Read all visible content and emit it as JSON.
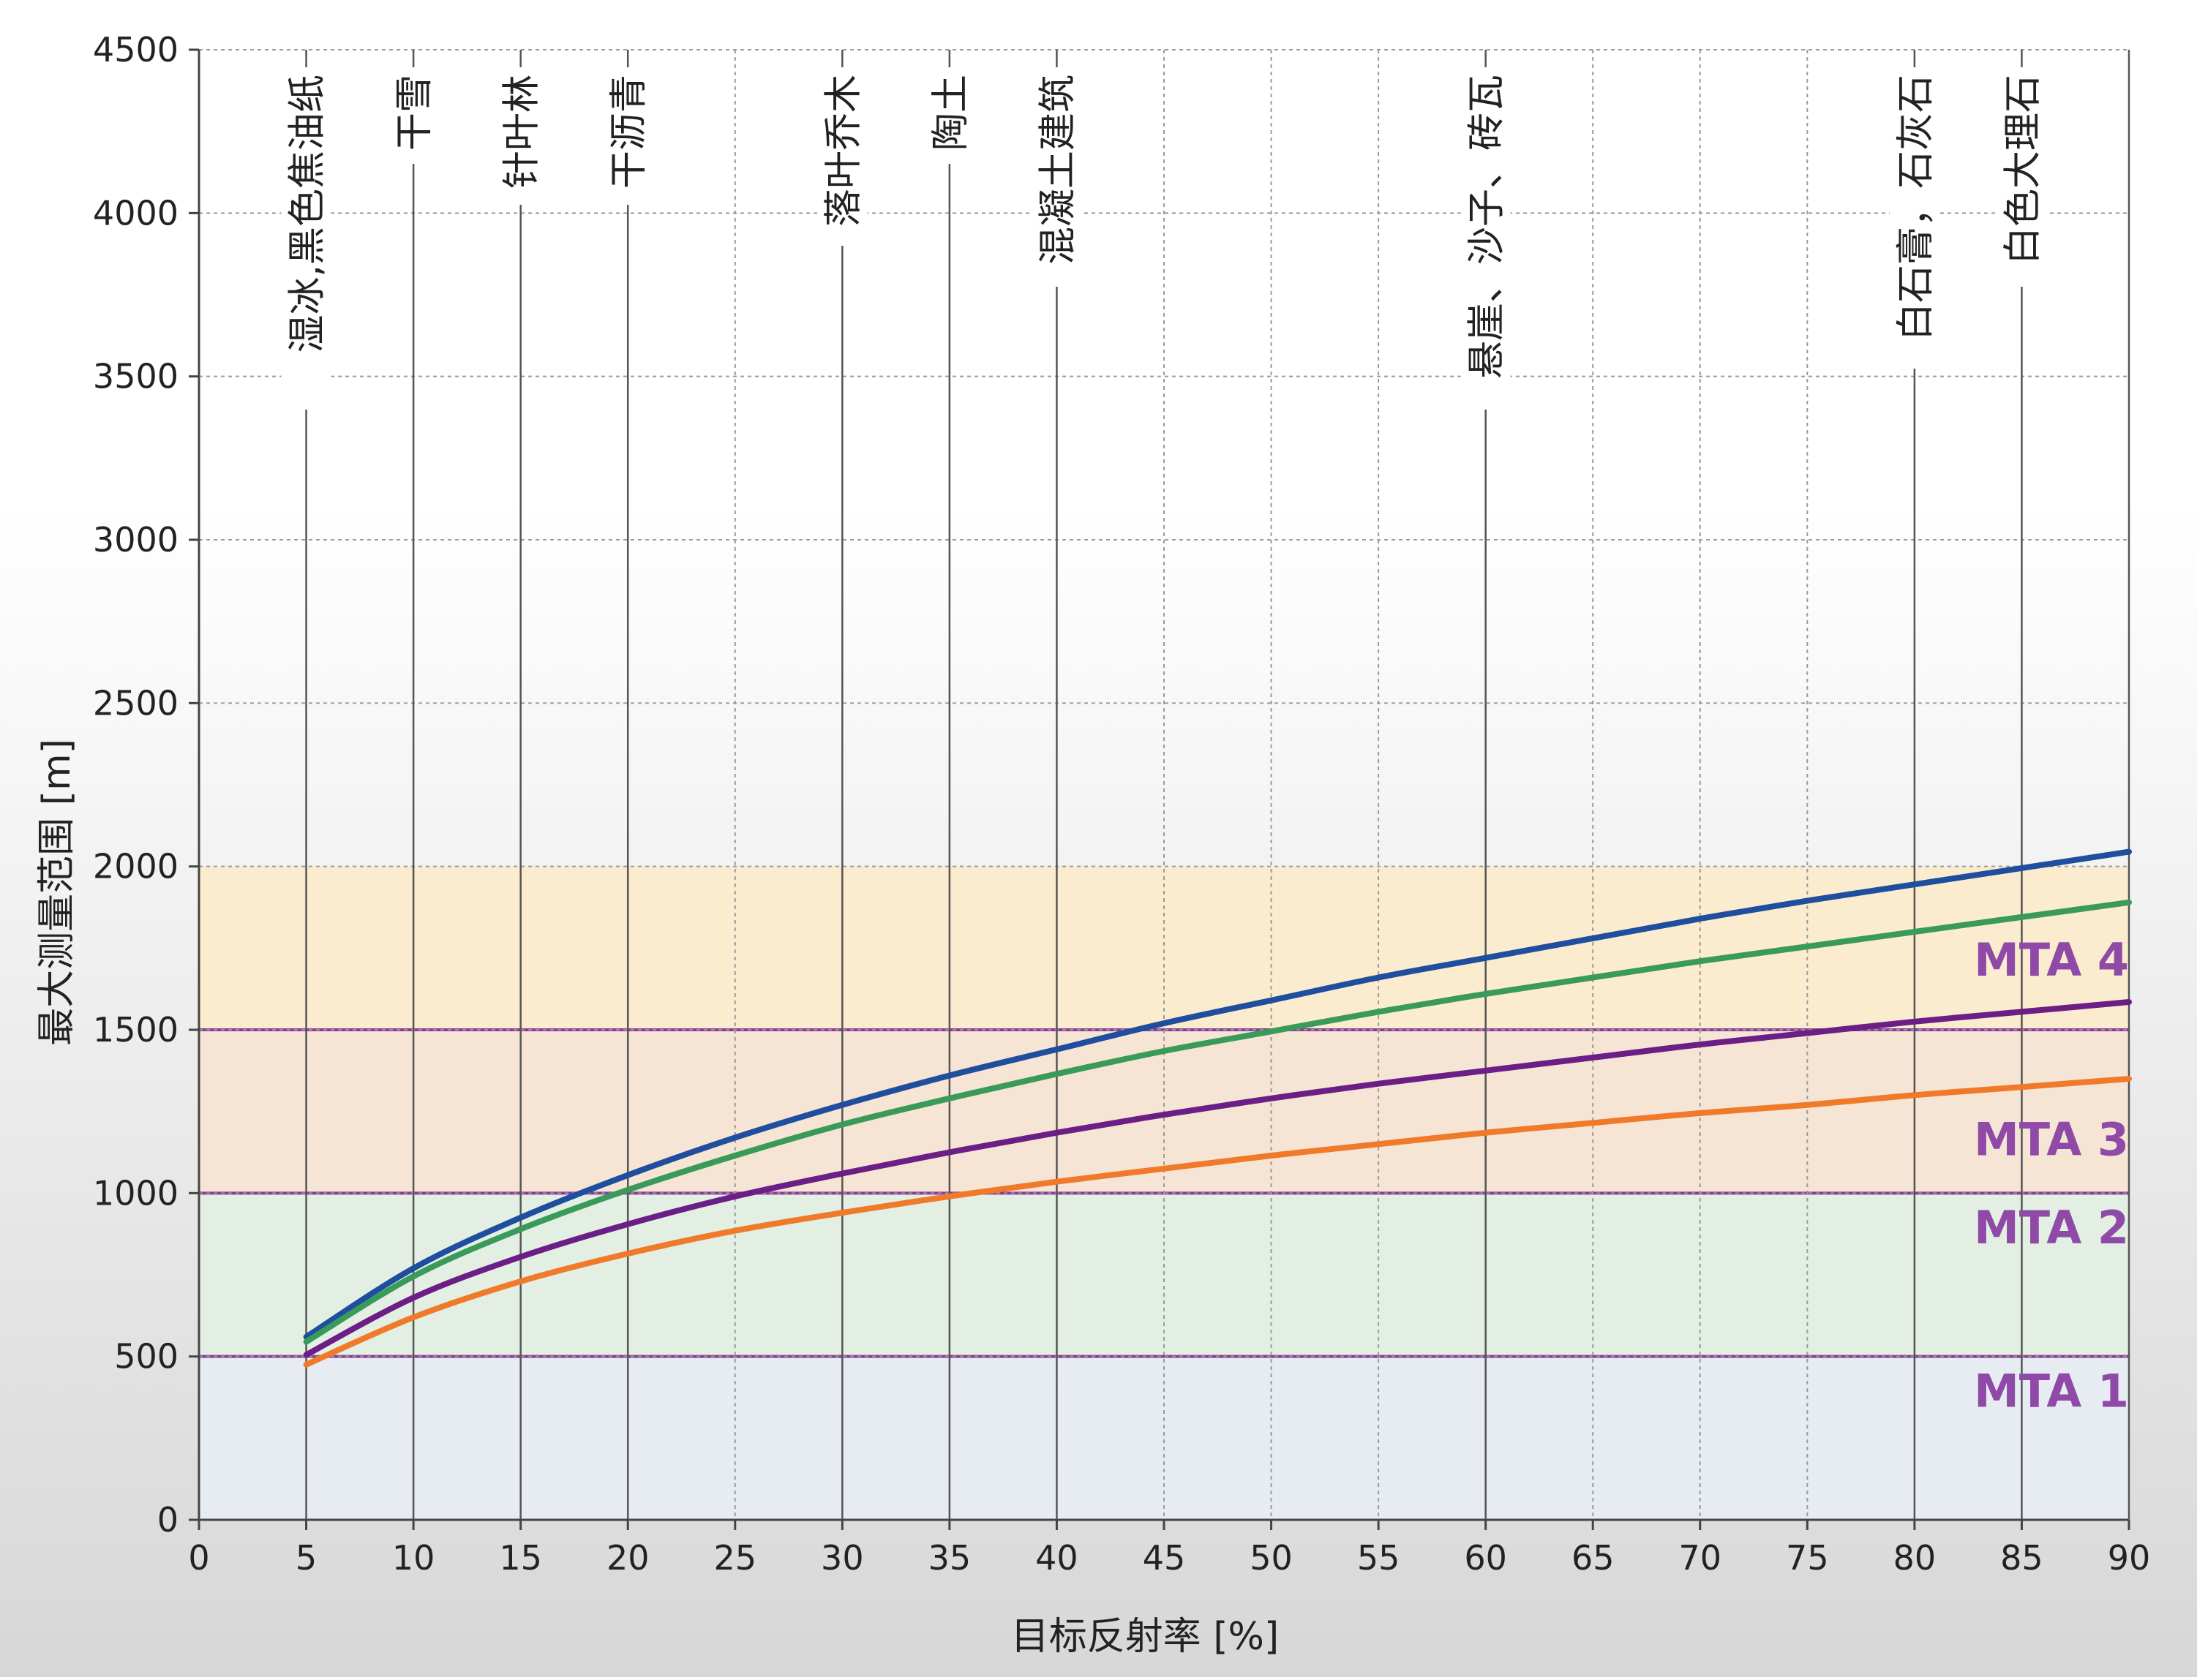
{
  "chart_data": {
    "type": "line",
    "xlabel": "目标反射率 [%]",
    "ylabel": "最大测量范围 [m]",
    "xlim": [
      0,
      90
    ],
    "ylim": [
      0,
      4500
    ],
    "x_ticks": [
      0,
      5,
      10,
      15,
      20,
      25,
      30,
      35,
      40,
      45,
      50,
      55,
      60,
      65,
      70,
      75,
      80,
      85,
      90
    ],
    "y_ticks": [
      0,
      500,
      1000,
      1500,
      2000,
      2500,
      3000,
      3500,
      4000,
      4500
    ],
    "grid": true,
    "series": [
      {
        "color": "#1f4e9e",
        "x": [
          5,
          10,
          15,
          20,
          25,
          30,
          35,
          40,
          45,
          50,
          55,
          60,
          65,
          70,
          75,
          80,
          85,
          90
        ],
        "values": [
          560,
          770,
          925,
          1055,
          1170,
          1270,
          1360,
          1440,
          1520,
          1590,
          1660,
          1720,
          1780,
          1840,
          1895,
          1945,
          1995,
          2045
        ]
      },
      {
        "color": "#3a9a5a",
        "x": [
          5,
          10,
          15,
          20,
          25,
          30,
          35,
          40,
          45,
          50,
          55,
          60,
          65,
          70,
          75,
          80,
          85,
          90
        ],
        "values": [
          545,
          745,
          890,
          1010,
          1115,
          1210,
          1290,
          1365,
          1435,
          1495,
          1555,
          1610,
          1660,
          1710,
          1755,
          1800,
          1845,
          1890
        ]
      },
      {
        "color": "#6b1f86",
        "x": [
          5,
          10,
          15,
          20,
          25,
          30,
          35,
          40,
          45,
          50,
          55,
          60,
          65,
          70,
          75,
          80,
          85,
          90
        ],
        "values": [
          505,
          680,
          805,
          905,
          990,
          1060,
          1125,
          1185,
          1240,
          1290,
          1335,
          1375,
          1415,
          1455,
          1490,
          1525,
          1555,
          1585
        ]
      },
      {
        "color": "#f07a2a",
        "x": [
          5,
          10,
          15,
          20,
          25,
          30,
          35,
          40,
          45,
          50,
          55,
          60,
          65,
          70,
          75,
          80,
          85,
          90
        ],
        "values": [
          475,
          620,
          730,
          815,
          885,
          940,
          990,
          1035,
          1075,
          1115,
          1150,
          1185,
          1215,
          1245,
          1270,
          1300,
          1325,
          1350
        ]
      }
    ],
    "bands": [
      {
        "label": "MTA 1",
        "from": 0,
        "to": 500,
        "color": "#e6ecf2"
      },
      {
        "label": "MTA 2",
        "from": 500,
        "to": 1000,
        "color": "#e3efe3"
      },
      {
        "label": "MTA 3",
        "from": 1000,
        "to": 1500,
        "color": "#f6e4d4"
      },
      {
        "label": "MTA 4",
        "from": 1500,
        "to": 2000,
        "color": "#fbeccf"
      }
    ],
    "band_label_values": [
      {
        "label": "MTA 4",
        "y": 1715
      },
      {
        "label": "MTA 3",
        "y": 1165
      },
      {
        "label": "MTA 2",
        "y": 895
      },
      {
        "label": "MTA 1",
        "y": 395
      }
    ],
    "band_line_color": "#8a3a9a",
    "band_label_color": "#8e4aa6",
    "materials": [
      {
        "x": 5,
        "label": "湿冰,黑色焦油纸"
      },
      {
        "x": 10,
        "label": "干雪"
      },
      {
        "x": 15,
        "label": "针叶林"
      },
      {
        "x": 20,
        "label": "干沥青"
      },
      {
        "x": 30,
        "label": "落叶乔木"
      },
      {
        "x": 35,
        "label": "陶土"
      },
      {
        "x": 40,
        "label": "混凝土建筑"
      },
      {
        "x": 60,
        "label": "悬崖、沙子、砖瓦"
      },
      {
        "x": 80,
        "label": "白石膏，石灰石"
      },
      {
        "x": 85,
        "label": "白色大理石"
      }
    ]
  }
}
